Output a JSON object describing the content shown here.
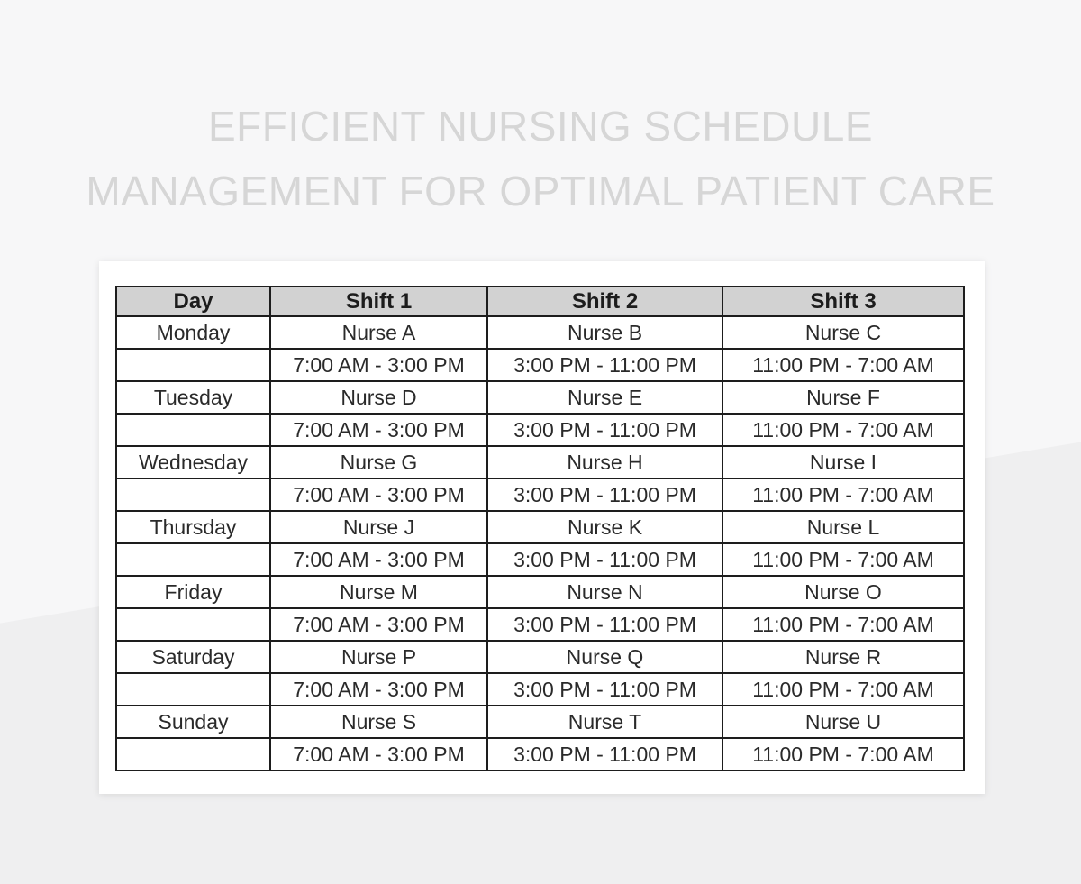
{
  "title": {
    "line1": "EFFICIENT NURSING SCHEDULE",
    "line2": "MANAGEMENT FOR OPTIMAL PATIENT CARE"
  },
  "table": {
    "columns": [
      "Day",
      "Shift 1",
      "Shift 2",
      "Shift 3"
    ],
    "rows": [
      {
        "day": "Monday",
        "nurses": [
          "Nurse A",
          "Nurse B",
          "Nurse C"
        ],
        "times": [
          "7:00 AM - 3:00 PM",
          "3:00 PM - 11:00 PM",
          "11:00 PM - 7:00 AM"
        ]
      },
      {
        "day": "Tuesday",
        "nurses": [
          "Nurse D",
          "Nurse E",
          "Nurse F"
        ],
        "times": [
          "7:00 AM - 3:00 PM",
          "3:00 PM - 11:00 PM",
          "11:00 PM - 7:00 AM"
        ]
      },
      {
        "day": "Wednesday",
        "nurses": [
          "Nurse G",
          "Nurse H",
          "Nurse I"
        ],
        "times": [
          "7:00 AM - 3:00 PM",
          "3:00 PM - 11:00 PM",
          "11:00 PM - 7:00 AM"
        ]
      },
      {
        "day": "Thursday",
        "nurses": [
          "Nurse J",
          "Nurse K",
          "Nurse L"
        ],
        "times": [
          "7:00 AM - 3:00 PM",
          "3:00 PM - 11:00 PM",
          "11:00 PM - 7:00 AM"
        ]
      },
      {
        "day": "Friday",
        "nurses": [
          "Nurse M",
          "Nurse N",
          "Nurse O"
        ],
        "times": [
          "7:00 AM - 3:00 PM",
          "3:00 PM - 11:00 PM",
          "11:00 PM - 7:00 AM"
        ]
      },
      {
        "day": "Saturday",
        "nurses": [
          "Nurse P",
          "Nurse Q",
          "Nurse R"
        ],
        "times": [
          "7:00 AM - 3:00 PM",
          "3:00 PM - 11:00 PM",
          "11:00 PM - 7:00 AM"
        ]
      },
      {
        "day": "Sunday",
        "nurses": [
          "Nurse S",
          "Nurse T",
          "Nurse U"
        ],
        "times": [
          "7:00 AM - 3:00 PM",
          "3:00 PM - 11:00 PM",
          "11:00 PM - 7:00 AM"
        ]
      }
    ]
  },
  "colors": {
    "page_bg_top": "#f7f7f8",
    "page_bg_bottom": "#efeff0",
    "card_bg": "#ffffff",
    "header_bg": "#d2d2d2",
    "table_border": "#1d1d1d",
    "title_text": "#d6d6d6",
    "body_text": "#2a2a2a"
  }
}
